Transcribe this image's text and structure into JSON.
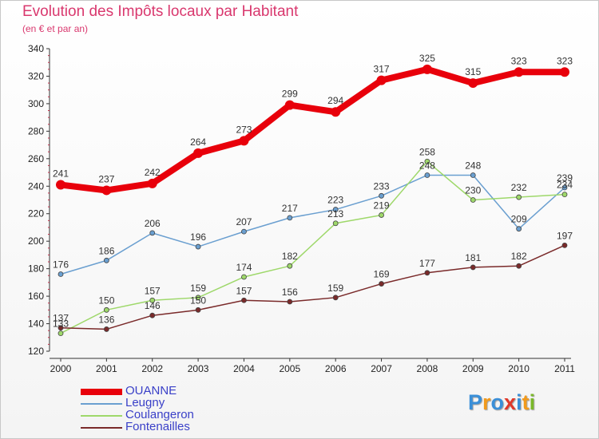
{
  "title": "Evolution des Impôts locaux par Habitant",
  "subtitle": "(en € et par an)",
  "logo": {
    "letters": [
      "P",
      "r",
      "o",
      "x",
      "i",
      "t",
      "i"
    ],
    "colors": [
      "#3a8fd8",
      "#f29a1c",
      "#3a8fd8",
      "#e0382a",
      "#3a8fd8",
      "#f29a1c",
      "#7ab829"
    ]
  },
  "chart_data": {
    "type": "line",
    "x": [
      "2000",
      "2001",
      "2002",
      "2003",
      "2004",
      "2005",
      "2006",
      "2007",
      "2008",
      "2009",
      "2010",
      "2011"
    ],
    "ylim": [
      120,
      340
    ],
    "yticks": [
      120,
      140,
      160,
      180,
      200,
      220,
      240,
      260,
      280,
      300,
      320,
      340
    ],
    "grid": false,
    "legend_position": "bottom-left",
    "series": [
      {
        "name": "OUANNE",
        "color": "#e8000b",
        "values": [
          241,
          237,
          242,
          264,
          273,
          299,
          294,
          317,
          325,
          315,
          323,
          323
        ]
      },
      {
        "name": "Leugny",
        "color": "#6a9fd0",
        "values": [
          176,
          186,
          206,
          196,
          207,
          217,
          223,
          233,
          248,
          248,
          209,
          239
        ]
      },
      {
        "name": "Coulangeron",
        "color": "#9ed86a",
        "values": [
          133,
          150,
          157,
          159,
          174,
          182,
          213,
          219,
          258,
          230,
          232,
          234
        ]
      },
      {
        "name": "Fontenailles",
        "color": "#7a2a2a",
        "values": [
          137,
          136,
          146,
          150,
          157,
          156,
          159,
          169,
          177,
          181,
          182,
          197
        ]
      }
    ]
  }
}
